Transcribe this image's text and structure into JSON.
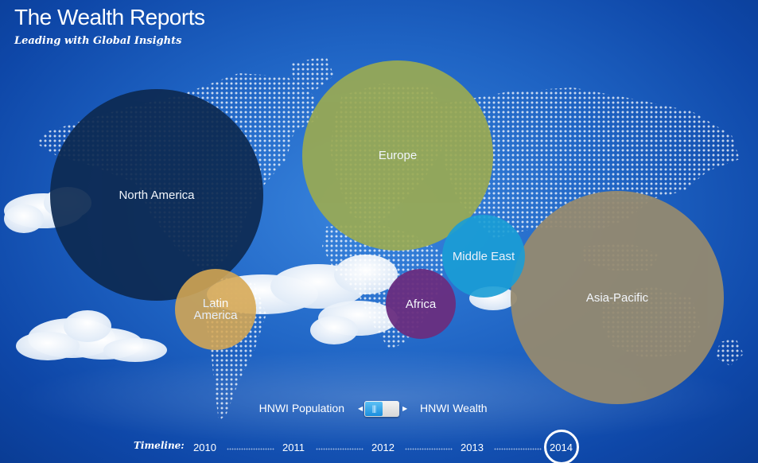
{
  "header": {
    "title": "The Wealth Reports",
    "subtitle": "Leading with Global Insights"
  },
  "regions": [
    {
      "key": "north-america",
      "label": "North America",
      "color": "#0d2a52"
    },
    {
      "key": "europe",
      "label": "Europe",
      "color": "#9aaa52"
    },
    {
      "key": "asia-pacific",
      "label": "Asia-Pacific",
      "color": "#958a70"
    },
    {
      "key": "latin-america",
      "label": "Latin America",
      "color": "#d7a853"
    },
    {
      "key": "middle-east",
      "label": "Middle East",
      "color": "#1a9ed6"
    },
    {
      "key": "africa",
      "label": "Africa",
      "color": "#6a2e80"
    }
  ],
  "toggle": {
    "left_label": "HNWI Population",
    "right_label": "HNWI Wealth",
    "selected": "HNWI Population"
  },
  "timeline": {
    "label": "Timeline:",
    "years": [
      "2010",
      "2011",
      "2012",
      "2013",
      "2014"
    ],
    "active": "2014"
  }
}
